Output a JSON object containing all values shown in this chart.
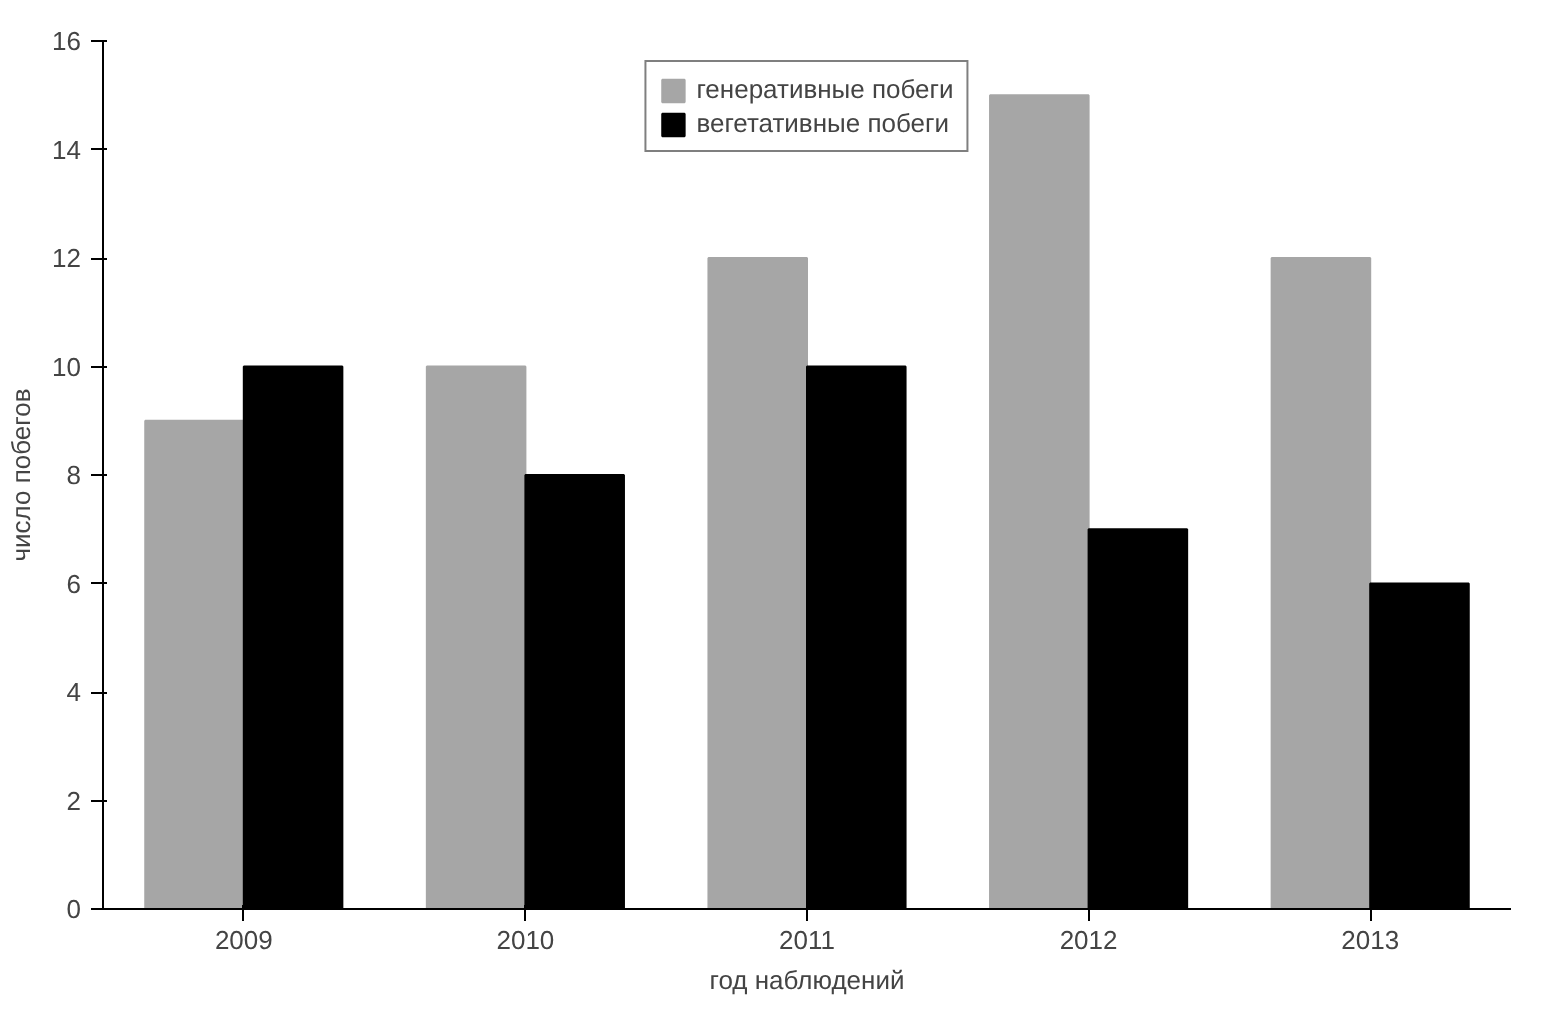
{
  "chart_data": {
    "type": "bar",
    "xlabel": "год наблюдений",
    "ylabel": "число побегов",
    "categories": [
      "2009",
      "2010",
      "2011",
      "2012",
      "2013"
    ],
    "series": [
      {
        "name": "генеративные побеги",
        "color": "#a6a6a6",
        "values": [
          9,
          10,
          12,
          15,
          12
        ]
      },
      {
        "name": "вегетативные побеги",
        "color": "#000000",
        "values": [
          10,
          8,
          10,
          7,
          6
        ]
      }
    ],
    "ylim": [
      0,
      16
    ],
    "yticks": [
      0,
      2,
      4,
      6,
      8,
      10,
      12,
      14,
      16
    ],
    "grid": false,
    "legend": "top"
  }
}
